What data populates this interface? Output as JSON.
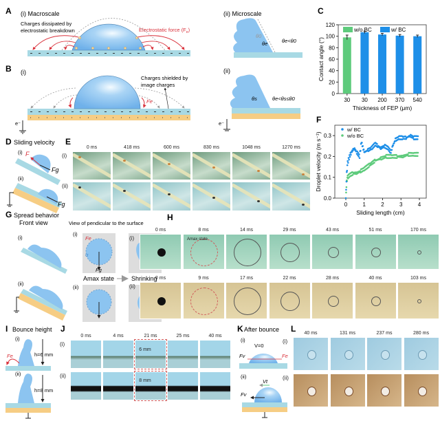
{
  "panels": {
    "A": {
      "letter": "A",
      "sub_i": "(i) Macroscale",
      "note1": "Charges dissipated by",
      "note2": "electrostatic breakdown",
      "force": "Electrostatic force (F",
      "force_sub": "e",
      "force_end": ")",
      "sub_ii": "(ii) Microscale",
      "angle_rel": "θe<θ0",
      "theta0": "θ0",
      "thetae": "θe"
    },
    "B": {
      "letter": "B",
      "sub_i": "(i)",
      "note1": "Charges shielded by",
      "note2": "image charges",
      "fe": "Fe",
      "electron": "e⁻",
      "sub_ii": "(ii)",
      "angle_rel": "θe<θs≤θ0",
      "thetas": "θs"
    },
    "C": {
      "letter": "C"
    },
    "D": {
      "letter": "D",
      "title": "Sliding velocity",
      "sub_i": "(i)",
      "sub_ii": "(ii)",
      "fe": "F",
      "fg": "Fg"
    },
    "E": {
      "letter": "E",
      "rows": [
        "(i)",
        "(ii)"
      ],
      "times": [
        "0 ms",
        "418 ms",
        "600 ms",
        "830 ms",
        "1048 ms",
        "1270 ms"
      ]
    },
    "F": {
      "letter": "F"
    },
    "G": {
      "letter": "G",
      "title": "Spread behavior",
      "front": "Front view",
      "view": "View of pendicular to the surface",
      "sub_i": "(i)",
      "sub_ii": "(ii)",
      "amax_state": "Amax state",
      "shrinking": "Shrinking",
      "sigma": "σ",
      "fe": "Fe",
      "fg": "Fg"
    },
    "H": {
      "letter": "H",
      "rows": [
        "(i)",
        "(ii)"
      ],
      "times_i": [
        "0 ms",
        "8 ms",
        "14 ms",
        "29 ms",
        "43 ms",
        "51 ms",
        "170 ms"
      ],
      "times_ii": [
        "0 ms",
        "9 ms",
        "17 ms",
        "22 ms",
        "28 ms",
        "40 ms",
        "103 ms"
      ],
      "amax_label": "Amax state"
    },
    "I": {
      "letter": "I",
      "title": "Bounce height",
      "sub_i": "(i)",
      "sub_ii": "(ii)",
      "h_i": "h=6 mm",
      "h_ii": "h=8 mm",
      "fe": "Fe"
    },
    "J": {
      "letter": "J",
      "rows": [
        "(i)",
        "(ii)"
      ],
      "times": [
        "0 ms",
        "4 ms",
        "21 ms",
        "25 ms",
        "40 ms"
      ],
      "height_i": "6 mm",
      "height_ii": "8 mm"
    },
    "K": {
      "letter": "K",
      "title": "After bounce",
      "sub_i": "(i)",
      "sub_ii": "(ii)",
      "v0": "V=0",
      "fv": "Fv",
      "fe": "Fe",
      "vt": "Vt"
    },
    "L": {
      "letter": "L",
      "rows": [
        "(i)",
        "(ii)"
      ],
      "times": [
        "40 ms",
        "131 ms",
        "237 ms",
        "280 ms"
      ]
    }
  },
  "colors": {
    "water": "#8cc4f0",
    "substrate": "#a8d9e4",
    "electrode": "#f6cd84",
    "force": "#d9303a",
    "wo_bc": "#5ecb7c",
    "w_bc": "#1e8fe8"
  },
  "chart_data": [
    {
      "type": "bar",
      "title": "",
      "categories": [
        "30",
        "30",
        "200",
        "370",
        "540"
      ],
      "series_of_category": [
        "w/o BC",
        "w/ BC",
        "w/ BC",
        "w/ BC",
        "w/ BC"
      ],
      "values": [
        98,
        107,
        103,
        101,
        100
      ],
      "errors": [
        4,
        2,
        2,
        2,
        2
      ],
      "legend": [
        "w/o BC",
        "w/ BC"
      ],
      "legend_placement": "top",
      "xlabel": "Thickness of FEP (μm)",
      "ylabel": "Contact angle (°)",
      "yticks": [
        "0",
        "20",
        "40",
        "60",
        "80",
        "100",
        "120"
      ],
      "ylim": [
        0,
        120
      ]
    },
    {
      "type": "scatter",
      "title": "",
      "xlabel": "Sliding length (cm)",
      "ylabel": "Droplet velocity (m s⁻¹)",
      "xticks": [
        "0",
        "1",
        "2",
        "3",
        "4"
      ],
      "yticks": [
        "0.0",
        "0.1",
        "0.2",
        "0.3"
      ],
      "xlim": [
        -0.6,
        4.3
      ],
      "ylim": [
        0,
        0.35
      ],
      "legend_placement": "top-left",
      "series": [
        {
          "name": "w/ BC",
          "x": [
            0,
            0.05,
            0.1,
            0.2,
            0.3,
            0.45,
            0.6,
            0.75,
            0.85,
            1.0,
            1.2,
            1.4,
            1.6,
            1.75,
            1.9,
            2.1,
            2.3,
            2.45,
            2.55,
            2.7,
            2.9,
            3.1,
            3.3,
            3.5,
            3.7,
            3.95
          ],
          "y": [
            0,
            0.12,
            0.17,
            0.2,
            0.22,
            0.24,
            0.22,
            0.2,
            0.27,
            0.22,
            0.23,
            0.24,
            0.26,
            0.25,
            0.24,
            0.25,
            0.24,
            0.22,
            0.25,
            0.28,
            0.29,
            0.29,
            0.29,
            0.3,
            0.29,
            0.29
          ]
        },
        {
          "name": "w/o BC",
          "x": [
            0,
            0.05,
            0.1,
            0.2,
            0.4,
            0.6,
            0.8,
            1.0,
            1.3,
            1.6,
            1.9,
            2.2,
            2.5,
            2.8,
            3.1,
            3.4,
            3.7,
            3.95
          ],
          "y": [
            0,
            0.08,
            0.1,
            0.11,
            0.12,
            0.12,
            0.13,
            0.14,
            0.16,
            0.18,
            0.19,
            0.2,
            0.2,
            0.2,
            0.2,
            0.21,
            0.21,
            0.21
          ]
        }
      ]
    }
  ]
}
